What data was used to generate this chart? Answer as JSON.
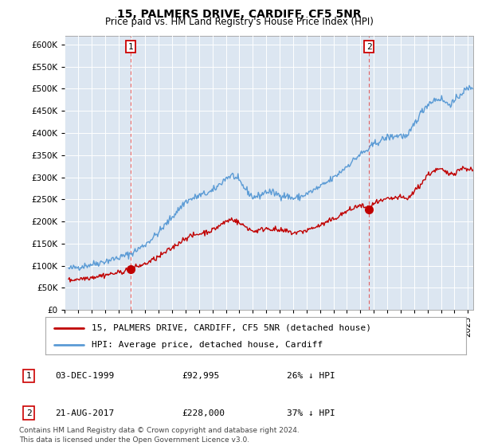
{
  "title": "15, PALMERS DRIVE, CARDIFF, CF5 5NR",
  "subtitle": "Price paid vs. HM Land Registry's House Price Index (HPI)",
  "yticks": [
    0,
    50000,
    100000,
    150000,
    200000,
    250000,
    300000,
    350000,
    400000,
    450000,
    500000,
    550000,
    600000
  ],
  "ylim": [
    0,
    620000
  ],
  "xlim_start": 1995.3,
  "xlim_end": 2025.4,
  "hpi_color": "#5b9bd5",
  "hpi_fill": "#dce6f1",
  "price_color": "#c00000",
  "dashed_color": "#e06060",
  "background_color": "#ffffff",
  "plot_bg_color": "#dce6f1",
  "grid_color": "#ffffff",
  "purchase1_x": 1999.92,
  "purchase1_y": 92995,
  "purchase1_label": "1",
  "purchase2_x": 2017.64,
  "purchase2_y": 228000,
  "purchase2_label": "2",
  "legend_entries": [
    "15, PALMERS DRIVE, CARDIFF, CF5 5NR (detached house)",
    "HPI: Average price, detached house, Cardiff"
  ],
  "table_rows": [
    [
      "1",
      "03-DEC-1999",
      "£92,995",
      "26% ↓ HPI"
    ],
    [
      "2",
      "21-AUG-2017",
      "£228,000",
      "37% ↓ HPI"
    ]
  ],
  "footnote": "Contains HM Land Registry data © Crown copyright and database right 2024.\nThis data is licensed under the Open Government Licence v3.0.",
  "title_fontsize": 10,
  "subtitle_fontsize": 8.5,
  "tick_fontsize": 7.5,
  "legend_fontsize": 8,
  "table_fontsize": 8,
  "footnote_fontsize": 6.5
}
